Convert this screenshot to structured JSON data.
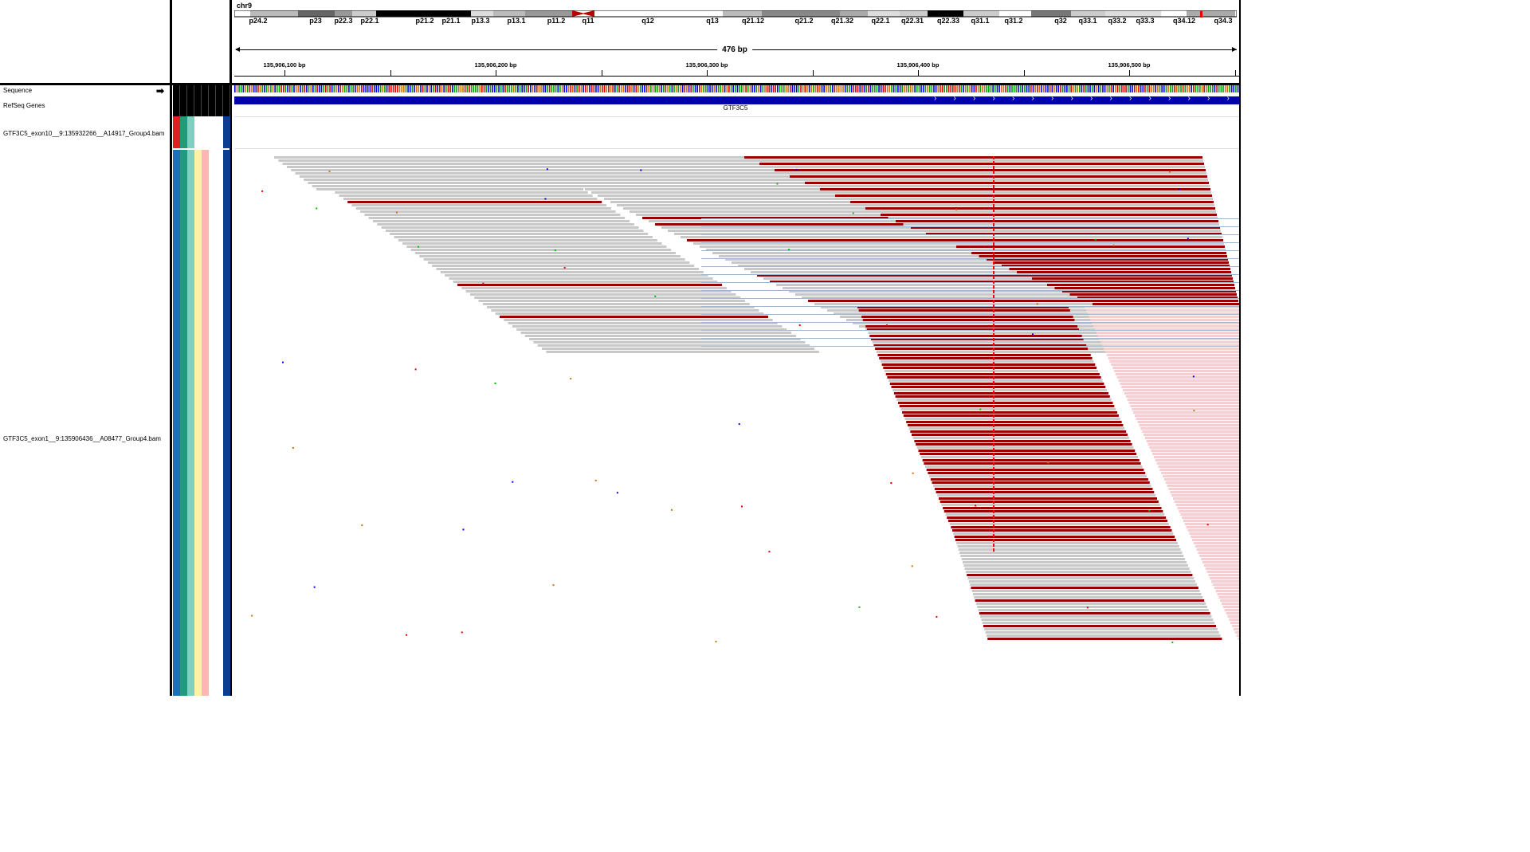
{
  "ideogram": {
    "chromosome": "chr9",
    "bands": [
      "p24.2",
      "p23",
      "p22.3",
      "p22.1",
      "p21.2",
      "p21.1",
      "p13.3",
      "p13.1",
      "p11.2",
      "q11",
      "q12",
      "q13",
      "q21.12",
      "q21.2",
      "q21.32",
      "q22.1",
      "q22.31",
      "q22.33",
      "q31.1",
      "q31.2",
      "q32",
      "q33.1",
      "q33.2",
      "q33.3",
      "q34.12",
      "q34.3"
    ]
  },
  "ruler": {
    "span": "476 bp",
    "ticks": [
      "135,906,100 bp",
      "135,906,200 bp",
      "135,906,300 bp",
      "135,906,400 bp",
      "135,906,500 bp"
    ]
  },
  "tracks": {
    "sequence": "Sequence",
    "refseq": "RefSeq Genes",
    "gene_name": "GTF3C5",
    "bam1": "GTF3C5_exon10__9:135932266__A14917_Group4.bam",
    "bam2": "GTF3C5_exon1__9:135906436__A08477_Group4.bam"
  },
  "colors": {
    "read_gray": "#c8c8c8",
    "read_dark_red": "#990000",
    "gene_blue": "#0000b3",
    "mismatch_red": "#ff0000"
  },
  "icons": {
    "sequence_strand": "right-arrow-icon"
  },
  "attribute_colors": [
    "#1f6fb5",
    "#22997a",
    "#7fd0c0",
    "#fff2a8",
    "#ffb7b2",
    "#ffffff",
    "#ffffff",
    "#0b3d91"
  ]
}
